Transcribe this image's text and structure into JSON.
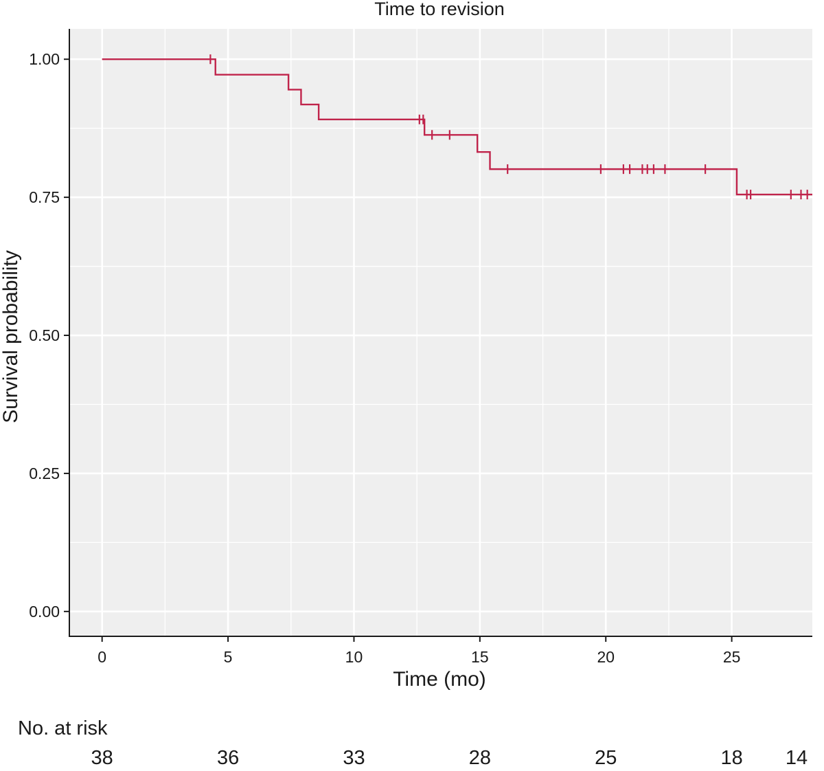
{
  "chart_data": {
    "type": "line",
    "title": "Time to revision",
    "xlabel": "Time (mo)",
    "ylabel": "Survival probability",
    "xlim": [
      -1.3,
      28.2
    ],
    "ylim": [
      -0.045,
      1.055
    ],
    "x_ticks": [
      0,
      5,
      10,
      15,
      20,
      25
    ],
    "x_tick_labels": [
      "0",
      "5",
      "10",
      "15",
      "20",
      "25"
    ],
    "y_ticks": [
      0.0,
      0.25,
      0.5,
      0.75,
      1.0
    ],
    "y_tick_labels": [
      "0.00",
      "0.25",
      "0.50",
      "0.75",
      "1.00"
    ],
    "grid": true,
    "colors": {
      "panel": "#efefef",
      "grid": "#ffffff",
      "curve": "#c0244b",
      "axis": "#1a1a1a"
    },
    "series": [
      {
        "steps": [
          {
            "x": 0,
            "y": 1.0
          },
          {
            "x": 4.5,
            "y": 0.972
          },
          {
            "x": 7.4,
            "y": 0.945
          },
          {
            "x": 7.9,
            "y": 0.918
          },
          {
            "x": 8.6,
            "y": 0.891
          },
          {
            "x": 12.8,
            "y": 0.863
          },
          {
            "x": 14.9,
            "y": 0.832
          },
          {
            "x": 15.4,
            "y": 0.801
          },
          {
            "x": 25.2,
            "y": 0.755
          }
        ],
        "x_end": 28.2,
        "censored": [
          {
            "x": 4.3,
            "y": 1.0
          },
          {
            "x": 12.6,
            "y": 0.891
          },
          {
            "x": 12.75,
            "y": 0.891
          },
          {
            "x": 13.1,
            "y": 0.863
          },
          {
            "x": 13.8,
            "y": 0.863
          },
          {
            "x": 16.1,
            "y": 0.801
          },
          {
            "x": 19.8,
            "y": 0.801
          },
          {
            "x": 20.7,
            "y": 0.801
          },
          {
            "x": 20.95,
            "y": 0.801
          },
          {
            "x": 21.45,
            "y": 0.801
          },
          {
            "x": 21.65,
            "y": 0.801
          },
          {
            "x": 21.9,
            "y": 0.801
          },
          {
            "x": 22.35,
            "y": 0.801
          },
          {
            "x": 23.95,
            "y": 0.801
          },
          {
            "x": 25.6,
            "y": 0.755
          },
          {
            "x": 25.75,
            "y": 0.755
          },
          {
            "x": 27.35,
            "y": 0.755
          },
          {
            "x": 27.75,
            "y": 0.755
          },
          {
            "x": 28.0,
            "y": 0.755
          }
        ]
      }
    ],
    "risk_table": {
      "label": "No. at risk",
      "times": [
        0,
        5,
        10,
        15,
        20,
        25,
        28.2
      ],
      "counts": [
        "38",
        "36",
        "33",
        "28",
        "25",
        "18",
        "14"
      ]
    }
  }
}
